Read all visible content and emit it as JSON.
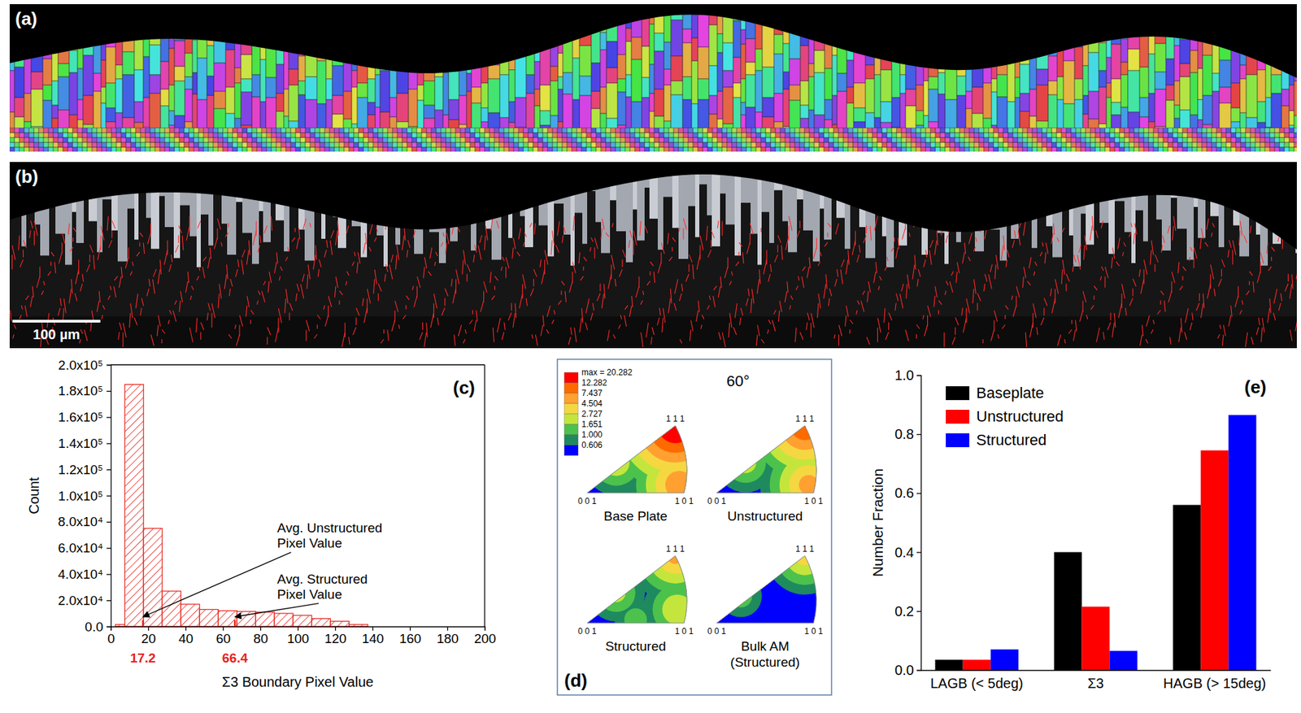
{
  "images": [
    {
      "letter": "(a)"
    },
    {
      "letter": "(b)",
      "scale_bar": {
        "length": 100,
        "label": "100 µm"
      }
    }
  ],
  "chart_data": [
    {
      "type": "histogram",
      "letter": "(c)",
      "x_label": "Σ3 Boundary Pixel Value",
      "y_label": "Count",
      "bins": [
        2.5,
        7.5,
        17.5,
        27.5,
        37.5,
        47.5,
        57.5,
        67.5,
        77.5,
        87.5,
        97.5,
        107.5,
        117.5,
        127.5,
        137.5
      ],
      "values": [
        1500,
        185000,
        75000,
        27000,
        17000,
        13000,
        12000,
        11500,
        11000,
        10000,
        8500,
        6000,
        4000,
        1500
      ],
      "color": "#e8231c",
      "xlim": [
        0,
        200
      ],
      "xticks": [
        0,
        20,
        40,
        60,
        80,
        100,
        120,
        140,
        160,
        180,
        200
      ],
      "ylim": [
        0,
        200000
      ],
      "yticks": [
        {
          "value": 0,
          "label": "0.0"
        },
        {
          "value": 20000,
          "label": "2.0x10⁴"
        },
        {
          "value": 40000,
          "label": "4.0x10⁴"
        },
        {
          "value": 60000,
          "label": "6.0x10⁴"
        },
        {
          "value": 80000,
          "label": "8.0x10⁴"
        },
        {
          "value": 100000,
          "label": "1.0x10⁵"
        },
        {
          "value": 120000,
          "label": "1.2x10⁵"
        },
        {
          "value": 140000,
          "label": "1.4x10⁵"
        },
        {
          "value": 160000,
          "label": "1.6x10⁵"
        },
        {
          "value": 180000,
          "label": "1.8x10⁵"
        },
        {
          "value": 200000,
          "label": "2.0x10⁵"
        }
      ],
      "annotations": [
        {
          "text": "Avg. Unstructured Pixel Value",
          "x": 17.2
        },
        {
          "text": "Avg. Structured Pixel Value",
          "x": 66.4
        }
      ]
    },
    {
      "type": "pole_figure",
      "letter": "(d)",
      "title": "60°",
      "corner_labels": [
        "0 0 1",
        "1 0 1",
        "1 1 1"
      ],
      "color_bar": {
        "levels": [
          {
            "value": 20.282,
            "label": "max = 20.282"
          },
          12.282,
          7.437,
          4.504,
          2.727,
          1.651,
          {
            "value": 1,
            "label": "1.000"
          },
          0.606
        ],
        "colors": [
          "#ff0000",
          "#ff6a00",
          "#ffa030",
          "#f5d742",
          "#c4e63c",
          "#4cc24c",
          "#1f8a5e",
          "#0000ff"
        ]
      },
      "figures": [
        {
          "name": "Base Plate",
          "spots": [
            {
              "u": 0.91,
              "v": 1,
              "level": 20.282
            },
            {
              "u": 0.95,
              "v": 0.12,
              "level": 6.2
            },
            {
              "u": 0.3,
              "v": 0.45,
              "level": 2.2
            }
          ]
        },
        {
          "name": "Unstructured",
          "spots": [
            {
              "u": 0.91,
              "v": 1,
              "level": 10.5
            },
            {
              "u": 0.95,
              "v": 0.12,
              "level": 5.0
            },
            {
              "u": 0.3,
              "v": 0.45,
              "level": 1.9
            }
          ]
        },
        {
          "name": "Structured",
          "spots": [
            {
              "u": 0.91,
              "v": 1,
              "level": 4.6
            },
            {
              "u": 0.93,
              "v": 0.2,
              "level": 2.4
            },
            {
              "u": 0.3,
              "v": 0.45,
              "level": 1.8
            },
            {
              "u": 0.5,
              "v": 0.05,
              "level": 1.2
            }
          ]
        },
        {
          "name": "Bulk AM (Structured)",
          "spots": [
            {
              "u": 0.91,
              "v": 1,
              "level": 3.0
            },
            {
              "u": 0.25,
              "v": 0.4,
              "level": 1.2
            }
          ]
        }
      ]
    },
    {
      "type": "bar",
      "letter": "(e)",
      "y_label": "Number Fraction",
      "categories": [
        "LAGB (< 5deg)",
        "Σ3",
        "HAGB (> 15deg)"
      ],
      "series": [
        {
          "name": "Baseplate",
          "color": "#000000",
          "values": [
            0.035,
            0.4,
            0.56
          ]
        },
        {
          "name": "Unstructured",
          "color": "#ff0000",
          "values": [
            0.035,
            0.215,
            0.745
          ]
        },
        {
          "name": "Structured",
          "color": "#0000ff",
          "values": [
            0.07,
            0.065,
            0.865
          ]
        }
      ],
      "ylim": [
        0,
        1
      ],
      "yticks": [
        {
          "value": 0,
          "label": "0.0"
        },
        0.2,
        0.4,
        0.6,
        0.8,
        {
          "value": 1,
          "label": "1.0"
        }
      ],
      "legend": "top-left"
    }
  ]
}
